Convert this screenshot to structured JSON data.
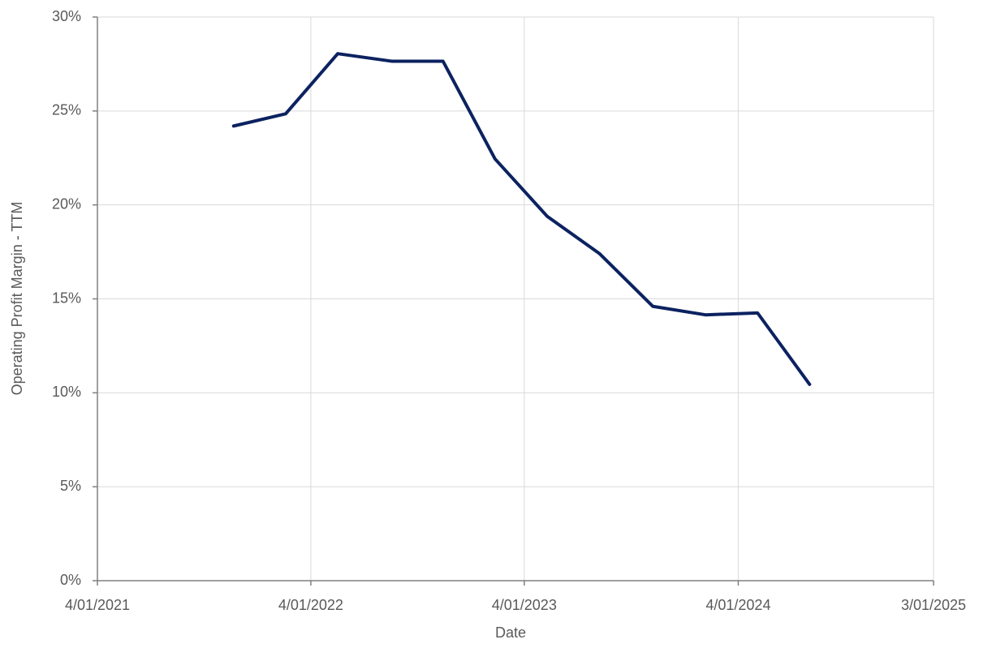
{
  "chart_data": {
    "type": "line",
    "x_label": "Date",
    "y_label": "Operating Profit Margin - TTM",
    "x": [
      "2021-11-20",
      "2022-02-17",
      "2022-05-17",
      "2022-08-17",
      "2022-11-13",
      "2023-02-10",
      "2023-05-10",
      "2023-08-08",
      "2023-11-07",
      "2024-02-05",
      "2024-05-04",
      "2024-08-01"
    ],
    "series": [
      {
        "name": "Operating Profit Margin - TTM",
        "color": "#0c2260",
        "values": [
          24.2,
          24.85,
          28.05,
          27.65,
          27.65,
          22.45,
          19.4,
          17.4,
          14.6,
          14.15,
          14.25,
          10.45
        ]
      }
    ],
    "xlim": [
      "2021-04-01",
      "2025-03-01"
    ],
    "xticks": [
      {
        "value": "2021-04-01",
        "label": "4/01/2021"
      },
      {
        "value": "2022-04-01",
        "label": "4/01/2022"
      },
      {
        "value": "2023-04-01",
        "label": "4/01/2023"
      },
      {
        "value": "2024-04-01",
        "label": "4/01/2024"
      },
      {
        "value": "2025-03-01",
        "label": "3/01/2025"
      }
    ],
    "ylim": [
      0,
      30
    ],
    "yticks": [
      {
        "value": 0,
        "label": "0%"
      },
      {
        "value": 5,
        "label": "5%"
      },
      {
        "value": 10,
        "label": "10%"
      },
      {
        "value": 15,
        "label": "15%"
      },
      {
        "value": 20,
        "label": "20%"
      },
      {
        "value": 25,
        "label": "25%"
      },
      {
        "value": 30,
        "label": "30%"
      }
    ],
    "grid": true
  }
}
